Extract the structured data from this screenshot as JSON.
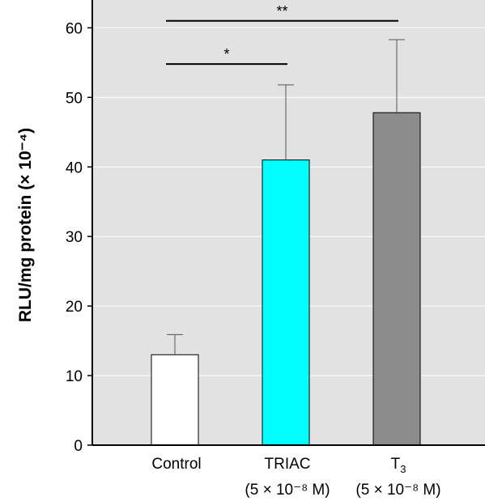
{
  "chart_data": {
    "type": "bar",
    "categories": [
      {
        "name": "Control",
        "sub": "",
        "subscript": "",
        "note": ""
      },
      {
        "name": "TRIAC",
        "sub": "",
        "subscript": "",
        "note": "(5 × 10⁻⁸ M)"
      },
      {
        "name": "T",
        "sub": "3",
        "subscript": "3",
        "note": "(5 × 10⁻⁸ M)"
      }
    ],
    "values": [
      13,
      41,
      47.8
    ],
    "errors": [
      2.9,
      10.8,
      10.5
    ],
    "bar_colors": [
      "#ffffff",
      "#00ffff",
      "#8c8c8c"
    ],
    "ylabel": "RLU/mg protein (× 10⁻⁴)",
    "ylim": [
      0,
      64
    ],
    "yticks": [
      0,
      10,
      20,
      30,
      40,
      50,
      60
    ],
    "grid": true,
    "plot_background": "#e2e2e2",
    "significance": [
      {
        "from": 0,
        "to": 1,
        "value": 54.8,
        "label": "*"
      },
      {
        "from": 0,
        "to": 2,
        "value": 61,
        "label": "**"
      }
    ]
  }
}
